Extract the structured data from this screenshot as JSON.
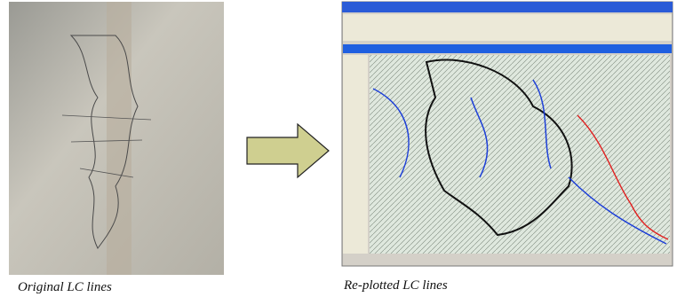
{
  "figure": {
    "left_caption": "Original LC lines",
    "right_caption": "Re-plotted LC lines"
  }
}
